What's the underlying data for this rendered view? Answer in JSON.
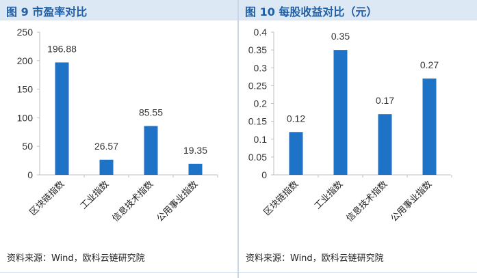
{
  "panels": [
    {
      "title": "图 9  市盈率对比",
      "source": "资料来源：Wind，欧科云链研究院"
    },
    {
      "title": "图 10  每股收益对比（元）",
      "source": "资料来源：Wind，欧科云链研究院"
    }
  ],
  "colors": {
    "bar": "#1f73c6",
    "title_bg": "#dde8f5",
    "title_text": "#1f5fa5"
  },
  "chart_data": [
    {
      "type": "bar",
      "title": "市盈率对比",
      "categories": [
        "区块链指数",
        "工业指数",
        "信息技术指数",
        "公用事业指数"
      ],
      "values": [
        196.88,
        26.57,
        85.55,
        19.35
      ],
      "value_labels": [
        "196.88",
        "26.57",
        "85.55",
        "19.35"
      ],
      "yticks": [
        "0",
        "50",
        "100",
        "150",
        "200",
        "250"
      ],
      "ylim": [
        0,
        250
      ],
      "grid": false
    },
    {
      "type": "bar",
      "title": "每股收益对比（元）",
      "categories": [
        "区块链指数",
        "工业指数",
        "信息技术指数",
        "公用事业指数"
      ],
      "values": [
        0.12,
        0.35,
        0.17,
        0.27
      ],
      "value_labels": [
        "0.12",
        "0.35",
        "0.17",
        "0.27"
      ],
      "yticks": [
        "0",
        "0.05",
        "0.1",
        "0.15",
        "0.2",
        "0.25",
        "0.3",
        "0.35",
        "0.4"
      ],
      "ylim": [
        0,
        0.4
      ],
      "grid": false
    }
  ]
}
